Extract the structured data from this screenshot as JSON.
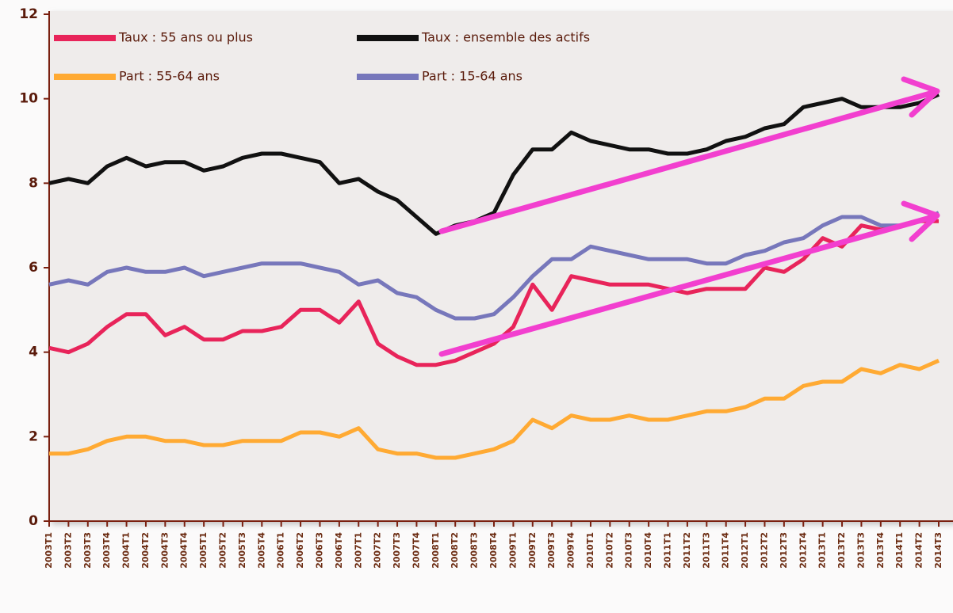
{
  "chart_data": {
    "type": "line",
    "categories": [
      "2003T1",
      "2003T2",
      "2003T3",
      "2003T4",
      "2004T1",
      "2004T2",
      "2004T3",
      "2004T4",
      "2005T1",
      "2005T2",
      "2005T3",
      "2005T4",
      "2006T1",
      "2006T2",
      "2006T3",
      "2006T4",
      "2007T1",
      "2007T2",
      "2007T3",
      "2007T4",
      "2008T1",
      "2008T2",
      "2008T3",
      "2008T4",
      "2009T1",
      "2009T2",
      "2009T3",
      "2009T4",
      "2010T1",
      "2010T2",
      "2010T3",
      "2010T4",
      "2011T1",
      "2011T2",
      "2011T3",
      "2011T4",
      "2012T1",
      "2012T2",
      "2012T3",
      "2012T4",
      "2013T1",
      "2013T2",
      "2013T3",
      "2013T4",
      "2014T1",
      "2014T2",
      "2014T3"
    ],
    "series": [
      {
        "name": "Taux : 55 ans ou plus",
        "color": "#e8245a",
        "values": [
          4.1,
          4.0,
          4.2,
          4.6,
          4.9,
          4.9,
          4.4,
          4.6,
          4.3,
          4.3,
          4.5,
          4.5,
          4.6,
          5.0,
          5.0,
          4.7,
          5.2,
          4.2,
          3.9,
          3.7,
          3.7,
          3.8,
          4.0,
          4.2,
          4.6,
          5.6,
          5.0,
          5.8,
          5.7,
          5.6,
          5.6,
          5.6,
          5.5,
          5.4,
          5.5,
          5.5,
          5.5,
          6.0,
          5.9,
          6.2,
          6.7,
          6.5,
          7.0,
          6.9,
          7.0,
          7.1,
          7.1
        ]
      },
      {
        "name": "Taux : ensemble des actifs",
        "color": "#111111",
        "values": [
          8.0,
          8.1,
          8.0,
          8.4,
          8.6,
          8.4,
          8.5,
          8.5,
          8.3,
          8.4,
          8.6,
          8.7,
          8.7,
          8.6,
          8.5,
          8.0,
          8.1,
          7.8,
          7.6,
          7.2,
          6.8,
          7.0,
          7.1,
          7.3,
          8.2,
          8.8,
          8.8,
          9.2,
          9.0,
          8.9,
          8.8,
          8.8,
          8.7,
          8.7,
          8.8,
          9.0,
          9.1,
          9.3,
          9.4,
          9.8,
          9.9,
          10.0,
          9.8,
          9.8,
          9.8,
          9.9,
          10.1
        ]
      },
      {
        "name": "Part : 55-64 ans",
        "color": "#ffaa33",
        "values": [
          1.6,
          1.6,
          1.7,
          1.9,
          2.0,
          2.0,
          1.9,
          1.9,
          1.8,
          1.8,
          1.9,
          1.9,
          1.9,
          2.1,
          2.1,
          2.0,
          2.2,
          1.7,
          1.6,
          1.6,
          1.5,
          1.5,
          1.6,
          1.7,
          1.9,
          2.4,
          2.2,
          2.5,
          2.4,
          2.4,
          2.5,
          2.4,
          2.4,
          2.5,
          2.6,
          2.6,
          2.7,
          2.9,
          2.9,
          3.2,
          3.3,
          3.3,
          3.6,
          3.5,
          3.7,
          3.6,
          3.8
        ]
      },
      {
        "name": "Part : 15-64 ans",
        "color": "#7777bb",
        "values": [
          5.6,
          5.7,
          5.6,
          5.9,
          6.0,
          5.9,
          5.9,
          6.0,
          5.8,
          5.9,
          6.0,
          6.1,
          6.1,
          6.1,
          6.0,
          5.9,
          5.6,
          5.7,
          5.4,
          5.3,
          5.0,
          4.8,
          4.8,
          4.9,
          5.3,
          5.8,
          6.2,
          6.2,
          6.5,
          6.4,
          6.3,
          6.2,
          6.2,
          6.2,
          6.1,
          6.1,
          6.3,
          6.4,
          6.6,
          6.7,
          7.0,
          7.2,
          7.2,
          7.0,
          7.0,
          7.1,
          7.3
        ]
      }
    ],
    "ylim": [
      0,
      12
    ],
    "yticks": [
      0,
      2,
      4,
      6,
      8,
      10,
      12
    ]
  }
}
